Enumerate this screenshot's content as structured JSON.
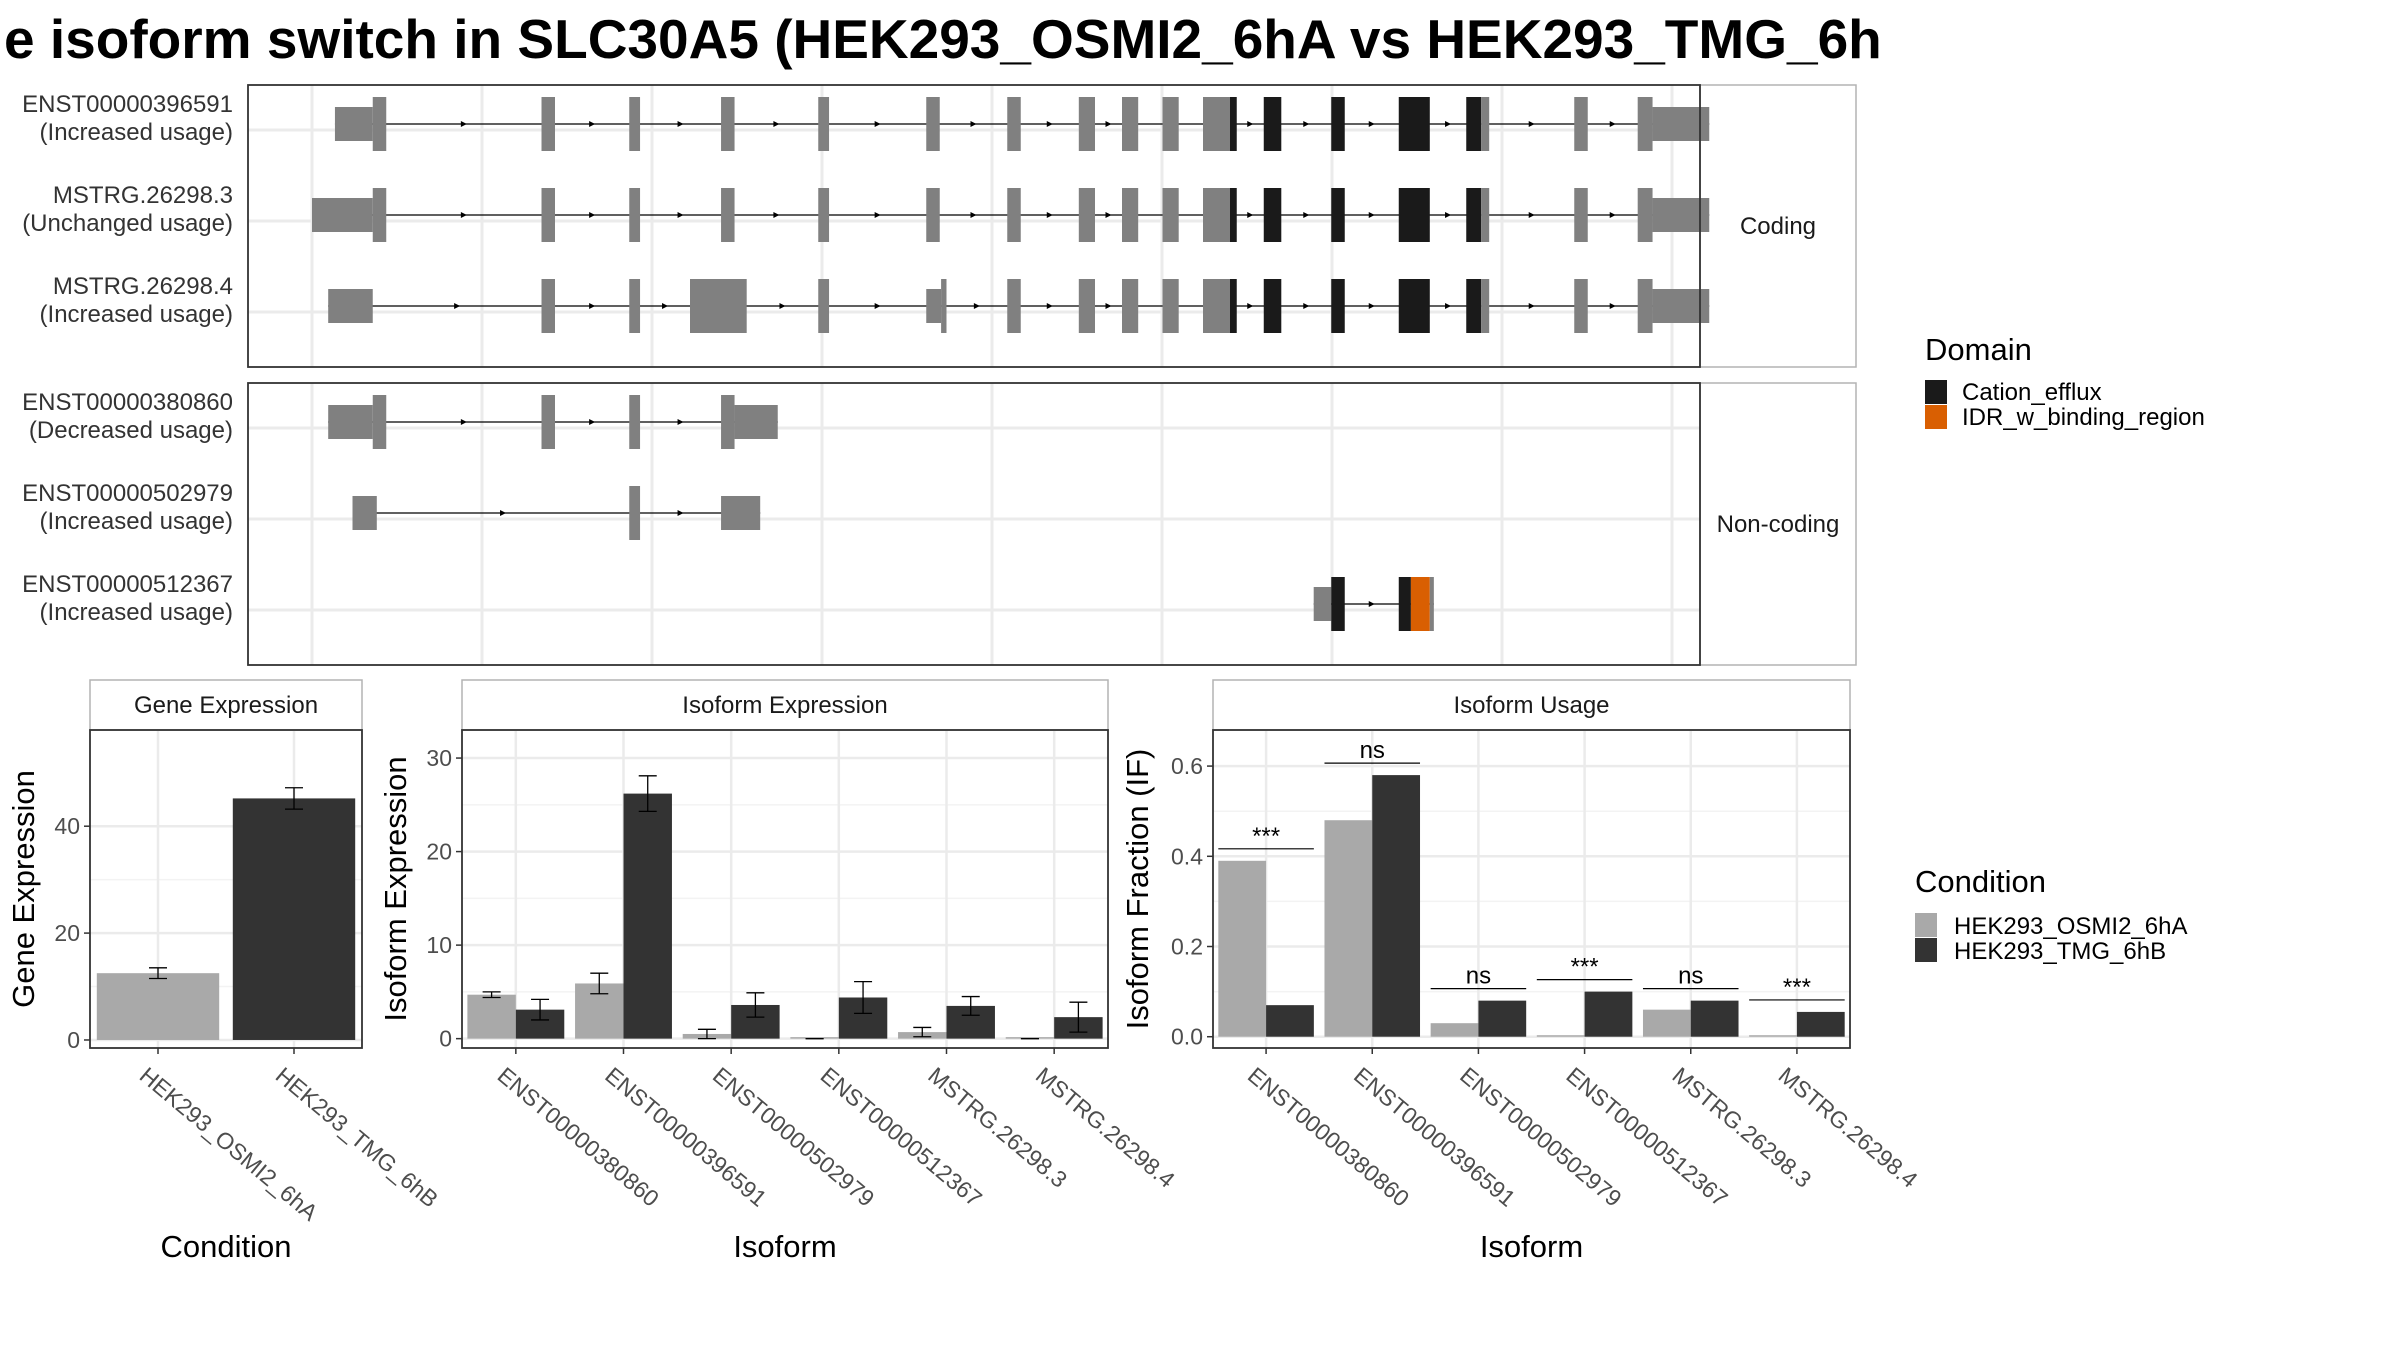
{
  "title": "e isoform switch in SLC30A5 (HEK293_OSMI2_6hA vs HEK293_TMG_6h",
  "colors": {
    "exon_grey": "#808080",
    "cation_efflux": "#1a1a1a",
    "idr_binding": "#d95f02",
    "cond_a": "#a9a9a9",
    "cond_b": "#333333",
    "grid": "#ebebeb",
    "panel_border": "#333333",
    "strip_border": "#b3b3b3"
  },
  "structure": {
    "coding_label": "Coding",
    "noncoding_label": "Non-coding",
    "transcripts": [
      {
        "group": "coding",
        "id": "ENST00000396591",
        "usage": "(Increased usage)",
        "exons": [
          {
            "s": 17,
            "e": 45,
            "h": "half"
          },
          {
            "s": 45,
            "e": 55,
            "h": "full"
          },
          {
            "s": 170,
            "e": 180,
            "h": "full"
          },
          {
            "s": 235,
            "e": 243,
            "h": "full"
          },
          {
            "s": 303,
            "e": 313,
            "h": "full"
          },
          {
            "s": 375,
            "e": 383,
            "h": "full"
          },
          {
            "s": 455,
            "e": 465,
            "h": "full"
          },
          {
            "s": 515,
            "e": 525,
            "h": "full"
          },
          {
            "s": 568,
            "e": 580,
            "h": "full"
          },
          {
            "s": 600,
            "e": 612,
            "h": "full"
          },
          {
            "s": 630,
            "e": 642,
            "h": "full"
          },
          {
            "s": 660,
            "e": 680,
            "h": "full"
          },
          {
            "s": 680,
            "e": 685,
            "h": "full",
            "c": "cation_efflux"
          },
          {
            "s": 705,
            "e": 718,
            "h": "full",
            "c": "cation_efflux"
          },
          {
            "s": 755,
            "e": 765,
            "h": "full",
            "c": "cation_efflux"
          },
          {
            "s": 805,
            "e": 828,
            "h": "full",
            "c": "cation_efflux"
          },
          {
            "s": 855,
            "e": 866,
            "h": "full",
            "c": "cation_efflux"
          },
          {
            "s": 866,
            "e": 872,
            "h": "full"
          },
          {
            "s": 935,
            "e": 945,
            "h": "full"
          },
          {
            "s": 982,
            "e": 993,
            "h": "full"
          },
          {
            "s": 993,
            "e": 1035,
            "h": "half"
          }
        ]
      },
      {
        "group": "coding",
        "id": "MSTRG.26298.3",
        "usage": "(Unchanged usage)",
        "exons": [
          {
            "s": 0,
            "e": 45,
            "h": "half"
          },
          {
            "s": 45,
            "e": 55,
            "h": "full"
          },
          {
            "s": 170,
            "e": 180,
            "h": "full"
          },
          {
            "s": 235,
            "e": 243,
            "h": "full"
          },
          {
            "s": 303,
            "e": 313,
            "h": "full"
          },
          {
            "s": 375,
            "e": 383,
            "h": "full"
          },
          {
            "s": 455,
            "e": 465,
            "h": "full"
          },
          {
            "s": 515,
            "e": 525,
            "h": "full"
          },
          {
            "s": 568,
            "e": 580,
            "h": "full"
          },
          {
            "s": 600,
            "e": 612,
            "h": "full"
          },
          {
            "s": 630,
            "e": 642,
            "h": "full"
          },
          {
            "s": 660,
            "e": 680,
            "h": "full"
          },
          {
            "s": 680,
            "e": 685,
            "h": "full",
            "c": "cation_efflux"
          },
          {
            "s": 705,
            "e": 718,
            "h": "full",
            "c": "cation_efflux"
          },
          {
            "s": 755,
            "e": 765,
            "h": "full",
            "c": "cation_efflux"
          },
          {
            "s": 805,
            "e": 828,
            "h": "full",
            "c": "cation_efflux"
          },
          {
            "s": 855,
            "e": 866,
            "h": "full",
            "c": "cation_efflux"
          },
          {
            "s": 866,
            "e": 872,
            "h": "full"
          },
          {
            "s": 935,
            "e": 945,
            "h": "full"
          },
          {
            "s": 982,
            "e": 993,
            "h": "full"
          },
          {
            "s": 993,
            "e": 1035,
            "h": "half"
          }
        ]
      },
      {
        "group": "coding",
        "id": "MSTRG.26298.4",
        "usage": "(Increased usage)",
        "exons": [
          {
            "s": 12,
            "e": 45,
            "h": "half"
          },
          {
            "s": 170,
            "e": 180,
            "h": "full"
          },
          {
            "s": 235,
            "e": 243,
            "h": "full"
          },
          {
            "s": 280,
            "e": 322,
            "h": "full"
          },
          {
            "s": 375,
            "e": 383,
            "h": "full"
          },
          {
            "s": 455,
            "e": 466,
            "h": "half"
          },
          {
            "s": 466,
            "e": 470,
            "h": "full"
          },
          {
            "s": 515,
            "e": 525,
            "h": "full"
          },
          {
            "s": 568,
            "e": 580,
            "h": "full"
          },
          {
            "s": 600,
            "e": 612,
            "h": "full"
          },
          {
            "s": 630,
            "e": 642,
            "h": "full"
          },
          {
            "s": 660,
            "e": 680,
            "h": "full"
          },
          {
            "s": 680,
            "e": 685,
            "h": "full",
            "c": "cation_efflux"
          },
          {
            "s": 705,
            "e": 718,
            "h": "full",
            "c": "cation_efflux"
          },
          {
            "s": 755,
            "e": 765,
            "h": "full",
            "c": "cation_efflux"
          },
          {
            "s": 805,
            "e": 828,
            "h": "full",
            "c": "cation_efflux"
          },
          {
            "s": 855,
            "e": 866,
            "h": "full",
            "c": "cation_efflux"
          },
          {
            "s": 866,
            "e": 872,
            "h": "full"
          },
          {
            "s": 935,
            "e": 945,
            "h": "full"
          },
          {
            "s": 982,
            "e": 993,
            "h": "full"
          },
          {
            "s": 993,
            "e": 1035,
            "h": "half"
          }
        ]
      },
      {
        "group": "noncoding",
        "id": "ENST00000380860",
        "usage": "(Decreased usage)",
        "exons": [
          {
            "s": 12,
            "e": 45,
            "h": "half"
          },
          {
            "s": 45,
            "e": 55,
            "h": "full"
          },
          {
            "s": 170,
            "e": 180,
            "h": "full"
          },
          {
            "s": 235,
            "e": 243,
            "h": "full"
          },
          {
            "s": 303,
            "e": 313,
            "h": "full"
          },
          {
            "s": 313,
            "e": 345,
            "h": "half"
          }
        ]
      },
      {
        "group": "noncoding",
        "id": "ENST00000502979",
        "usage": "(Increased usage)",
        "exons": [
          {
            "s": 30,
            "e": 48,
            "h": "half"
          },
          {
            "s": 235,
            "e": 243,
            "h": "full"
          },
          {
            "s": 303,
            "e": 332,
            "h": "half"
          }
        ]
      },
      {
        "group": "noncoding",
        "id": "ENST00000512367",
        "usage": "(Increased usage)",
        "exons": [
          {
            "s": 742,
            "e": 755,
            "h": "half"
          },
          {
            "s": 755,
            "e": 765,
            "h": "full",
            "c": "cation_efflux"
          },
          {
            "s": 805,
            "e": 814,
            "h": "full",
            "c": "cation_efflux"
          },
          {
            "s": 814,
            "e": 828,
            "h": "full",
            "c": "idr_binding"
          },
          {
            "s": 828,
            "e": 831,
            "h": "full"
          }
        ]
      }
    ]
  },
  "legend_domain": {
    "title": "Domain",
    "items": [
      {
        "label": "Cation_efflux",
        "color": "#1a1a1a"
      },
      {
        "label": "IDR_w_binding_region",
        "color": "#d95f02"
      }
    ]
  },
  "legend_condition": {
    "title": "Condition",
    "items": [
      {
        "label": "HEK293_OSMI2_6hA",
        "color": "#a9a9a9"
      },
      {
        "label": "HEK293_TMG_6hB",
        "color": "#333333"
      }
    ]
  },
  "chart_data": [
    {
      "type": "bar",
      "title": "Gene Expression",
      "xlabel": "Condition",
      "ylabel": "Gene Expression",
      "ylim": [
        -1.5,
        58
      ],
      "yticks": [
        0,
        20,
        40
      ],
      "categories": [
        "HEK293_OSMI2_6hA",
        "HEK293_TMG_6hB"
      ],
      "values": [
        12.5,
        45.2
      ],
      "errors": [
        1.0,
        2.0
      ]
    },
    {
      "type": "bar",
      "title": "Isoform Expression",
      "xlabel": "Isoform",
      "ylabel": "Isoform Expression",
      "ylim": [
        -1.0,
        33
      ],
      "yticks": [
        0,
        10,
        20,
        30
      ],
      "categories": [
        "ENST00000380860",
        "ENST00000396591",
        "ENST00000502979",
        "ENST00000512367",
        "MSTRG.26298.3",
        "MSTRG.26298.4"
      ],
      "series": [
        {
          "name": "HEK293_OSMI2_6hA",
          "values": [
            4.7,
            5.9,
            0.5,
            0.0,
            0.7,
            0.0
          ],
          "errors": [
            0.3,
            1.1,
            0.5,
            0.0,
            0.5,
            0.0
          ]
        },
        {
          "name": "HEK293_TMG_6hB",
          "values": [
            3.1,
            26.2,
            3.6,
            4.4,
            3.5,
            2.3
          ],
          "errors": [
            1.1,
            1.9,
            1.3,
            1.7,
            1.0,
            1.6
          ]
        }
      ]
    },
    {
      "type": "bar",
      "title": "Isoform Usage",
      "xlabel": "Isoform",
      "ylabel": "Isoform Fraction (IF)",
      "ylim": [
        -0.025,
        0.68
      ],
      "yticks": [
        0.0,
        0.2,
        0.4,
        0.6
      ],
      "ytick_labels": [
        "0.0",
        "0.2",
        "0.4",
        "0.6"
      ],
      "categories": [
        "ENST00000380860",
        "ENST00000396591",
        "ENST00000502979",
        "ENST00000512367",
        "MSTRG.26298.3",
        "MSTRG.26298.4"
      ],
      "series": [
        {
          "name": "HEK293_OSMI2_6hA",
          "values": [
            0.39,
            0.48,
            0.03,
            0.0,
            0.06,
            0.0
          ]
        },
        {
          "name": "HEK293_TMG_6hB",
          "values": [
            0.07,
            0.58,
            0.08,
            0.1,
            0.08,
            0.055
          ]
        }
      ],
      "significance": [
        "***",
        "ns",
        "ns",
        "***",
        "ns",
        "***"
      ]
    }
  ]
}
